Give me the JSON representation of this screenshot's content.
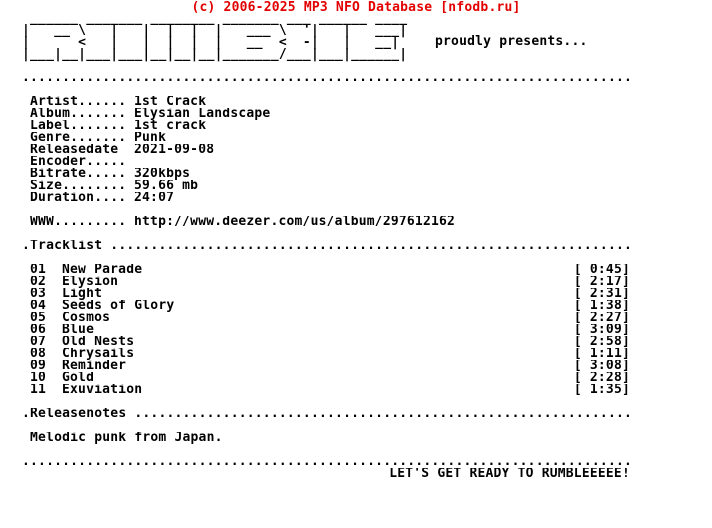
{
  "colors": {
    "accent_red": "#e30000",
    "text": "#000000",
    "background": "#ffffff"
  },
  "header": {
    "copyright": "(c) 2006-2025 MP3 NFO Database [nfodb.ru]",
    "tagline": "proudly presents..."
  },
  "logo": {
    "name": "RUMBLE ascii logo",
    "lines": [
      " ______ _______ ________ _______ ___ ______ ____",
      "|   __ \\   |   |  |  |  |   ___ \\  '|   |   ___|",
      "|      <   |   |  |  |  |   __  <  -|   |   __|",
      "|___|__|___|___|__|__|__|_______/___|___|______|"
    ]
  },
  "separators": {
    "top": "............................................................................",
    "bottom": "............................................................................"
  },
  "info": {
    "fields": [
      {
        "label": "Artist......",
        "value": "1st Crack"
      },
      {
        "label": "Album.......",
        "value": "Elysian Landscape"
      },
      {
        "label": "Label.......",
        "value": "1st crack"
      },
      {
        "label": "Genre.......",
        "value": "Punk"
      },
      {
        "label": "Releasedate",
        "value": "2021-09-08"
      },
      {
        "label": "Encoder.....",
        "value": ""
      },
      {
        "label": "Bitrate.....",
        "value": "320kbps"
      },
      {
        "label": "Size........",
        "value": "59.66 mb"
      },
      {
        "label": "Duration....",
        "value": "24:07"
      }
    ]
  },
  "www": {
    "label": "WWW.........",
    "value": "http://www.deezer.com/us/album/297612162"
  },
  "tracklist": {
    "header": ".Tracklist .................................................................",
    "tracks": [
      {
        "num": "01",
        "title": "New Parade",
        "time": "[ 0:45]"
      },
      {
        "num": "02",
        "title": "Elysion",
        "time": "[ 2:17]"
      },
      {
        "num": "03",
        "title": "Light",
        "time": "[ 2:31]"
      },
      {
        "num": "04",
        "title": "Seeds of Glory",
        "time": "[ 1:38]"
      },
      {
        "num": "05",
        "title": "Cosmos",
        "time": "[ 2:27]"
      },
      {
        "num": "06",
        "title": "Blue",
        "time": "[ 3:09]"
      },
      {
        "num": "07",
        "title": "Old Nests",
        "time": "[ 2:58]"
      },
      {
        "num": "08",
        "title": "Chrysails",
        "time": "[ 1:11]"
      },
      {
        "num": "09",
        "title": "Reminder",
        "time": "[ 3:08]"
      },
      {
        "num": "10",
        "title": "Gold",
        "time": "[ 2:28]"
      },
      {
        "num": "11",
        "title": "Exuviation",
        "time": "[ 1:35]"
      }
    ]
  },
  "releasenotes": {
    "header": ".Releasenotes ..............................................................",
    "note": "Melodic punk from Japan."
  },
  "footer": {
    "shout": "LET'S GET READY TO RUMBLEEEEE!"
  }
}
